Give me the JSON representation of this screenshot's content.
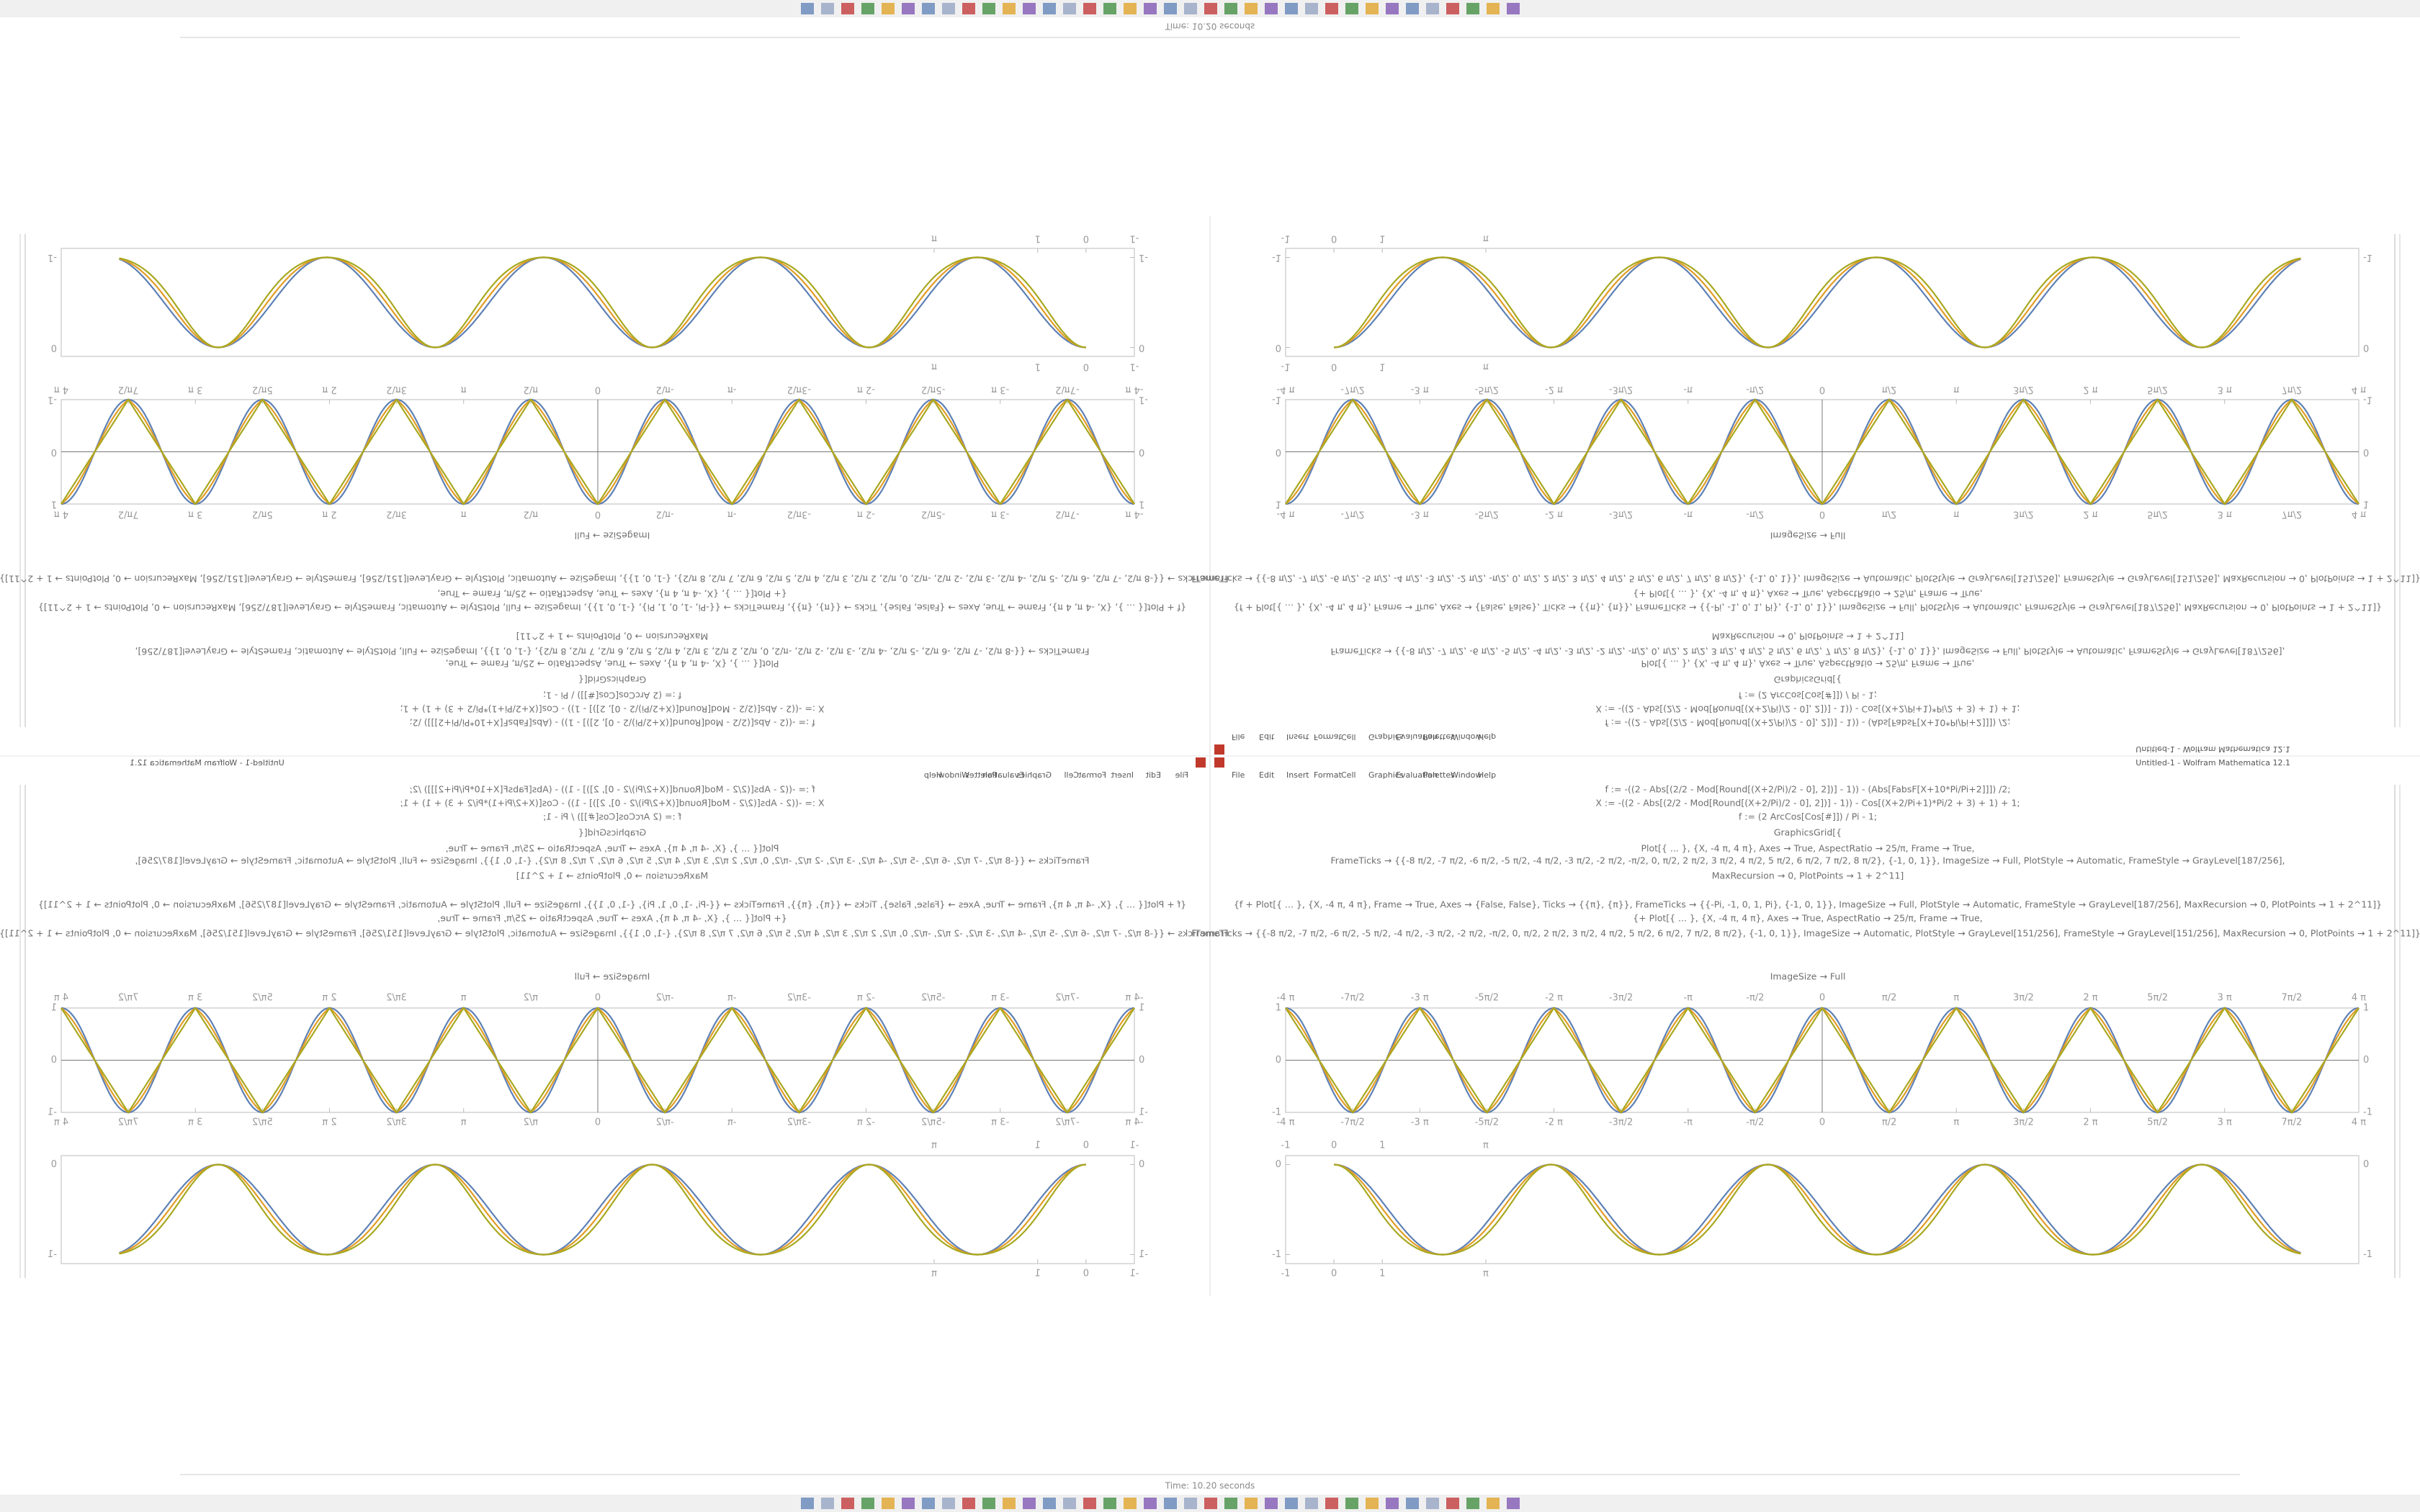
{
  "window": {
    "title": "Time: 10.20 seconds",
    "status": "Untitled-1 - Wolfram Mathematica 12.1"
  },
  "menu": [
    "File",
    "Edit",
    "Insert",
    "Format",
    "Cell",
    "Graphics",
    "Evaluation",
    "Palettes",
    "Window",
    "Help"
  ],
  "code": [
    "f := -((2 - Abs[(2/2 - Mod[Round[(X+2/Pi)/2 - 0], 2])] - 1)) - (Abs[FabsF[X+10*Pi/Pi+2]]]) /2;",
    "X := -((2 - Abs[(2/2 - Mod[Round[(X+2/Pi)/2 - 0], 2])] - 1)) - Cos[(X+2/Pi+1)*Pi/2 + 3) + 1) + 1;",
    "f := (2 ArcCos[Cos[#]]) / Pi - 1;",
    "GraphicsGrid[{",
    "Plot[{ ... }, {X, -4 π, 4 π}, Axes → True, AspectRatio → 25/π, Frame → True,",
    "FrameTicks → {{-8 π/2, -7 π/2, -6 π/2, -5 π/2, -4 π/2, -3 π/2, -2 π/2, -π/2, 0, π/2, 2 π/2, 3 π/2, 4 π/2, 5 π/2, 6 π/2, 7 π/2, 8 π/2}, {-1, 0, 1}}, ImageSize → Full, PlotStyle → Automatic, FrameStyle → GrayLevel[187/256],",
    "MaxRecursion → 0, PlotPoints → 1 + 2^11]",
    "{f + Plot[{ ... }, {X, -4 π, 4 π}, Frame → True, Axes → {False, False}, Ticks → {{π}, {π}}, FrameTicks → {{-Pi, -1, 0, 1, Pi}, {-1, 0, 1}}, ImageSize → Full, PlotStyle → Automatic, FrameStyle → GrayLevel[187/256], MaxRecursion → 0, PlotPoints → 1 + 2^11]}",
    "{+ Plot[{ ... }, {X, -4 π, 4 π}, Axes → True, AspectRatio → 25/π, Frame → True,",
    "FrameTicks → {{-8 π/2, -7 π/2, -6 π/2, -5 π/2, -4 π/2, -3 π/2, -2 π/2, -π/2, 0, π/2, 2 π/2, 3 π/2, 4 π/2, 5 π/2, 6 π/2, 7 π/2, 8 π/2}, {-1, 0, 1}}, ImageSize → Automatic, PlotStyle → GrayLevel[151/256], FrameStyle → GrayLevel[151/256], MaxRecursion → 0, PlotPoints → 1 + 2^11]}]"
  ],
  "output_label": "ImageSize → Full",
  "plot1": {
    "xlim": [
      -4,
      4
    ],
    "ylim": [
      -1,
      1
    ],
    "xticks": [
      {
        "value": -4,
        "label": "-4 π"
      },
      {
        "value": -3.5,
        "label": "-7π/2"
      },
      {
        "value": -3,
        "label": "-3 π"
      },
      {
        "value": -2.5,
        "label": "-5π/2"
      },
      {
        "value": -2,
        "label": "-2 π"
      },
      {
        "value": -1.5,
        "label": "-3π/2"
      },
      {
        "value": -1,
        "label": "-π"
      },
      {
        "value": -0.5,
        "label": "-π/2"
      },
      0,
      {
        "value": 0.5,
        "label": "π/2"
      },
      {
        "value": 1,
        "label": "π"
      },
      {
        "value": 1.5,
        "label": "3π/2"
      },
      {
        "value": 2,
        "label": "2 π"
      },
      {
        "value": 2.5,
        "label": "5π/2"
      },
      {
        "value": 3,
        "label": "3 π"
      },
      {
        "value": 3.5,
        "label": "7π/2"
      },
      {
        "value": 4,
        "label": "4 π"
      }
    ],
    "yticks": [
      -1,
      0,
      1
    ]
  },
  "plot2": {
    "xlim": [
      -1,
      21.2
    ],
    "ylim": [
      -1.1,
      0.1
    ],
    "xticks": [
      -1,
      0,
      1,
      {
        "value": 3.14159,
        "label": "π"
      }
    ],
    "yticks": [
      0,
      -1
    ]
  }
}
